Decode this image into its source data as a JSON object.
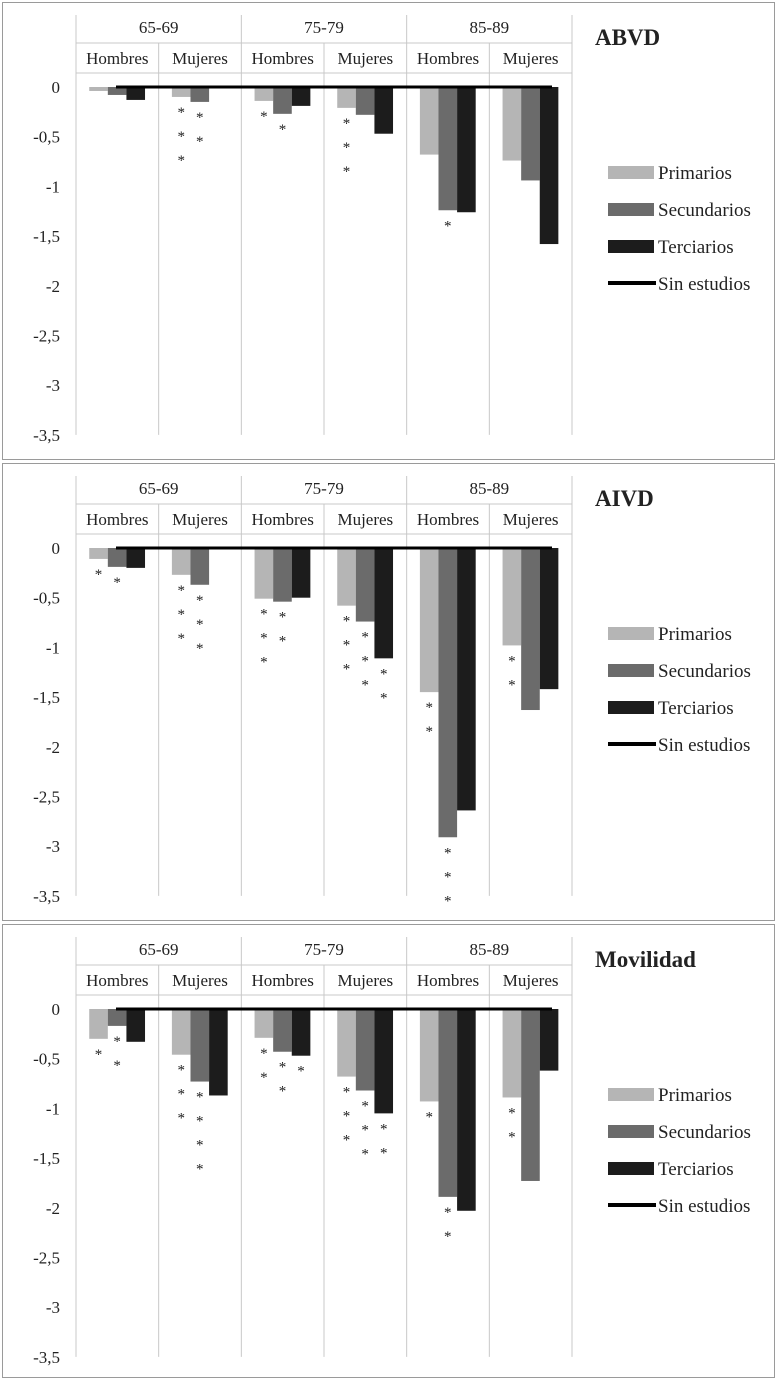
{
  "colors": {
    "primarios": "#b5b5b5",
    "secundarios": "#6b6b6b",
    "terciarios": "#1c1c1c",
    "sin_estudios": "#000000",
    "grid": "#c8c8c8"
  },
  "chart_data": [
    {
      "type": "bar",
      "title": "ABVD",
      "age_groups": [
        "65-69",
        "75-79",
        "85-89"
      ],
      "sexes": [
        "Hombres",
        "Mujeres"
      ],
      "categories": [
        "65-69 Hombres",
        "65-69 Mujeres",
        "75-79 Hombres",
        "75-79 Mujeres",
        "85-89 Hombres",
        "85-89 Mujeres"
      ],
      "ylim": [
        -3.5,
        0
      ],
      "yticks": [
        "0",
        "-0,5",
        "-1",
        "-1,5",
        "-2",
        "-2,5",
        "-3",
        "-3,5"
      ],
      "legend": [
        "Primarios",
        "Secundarios",
        "Terciarios",
        "Sin estudios"
      ],
      "legend_position": "right",
      "grid": true,
      "series": [
        {
          "name": "Primarios",
          "values": [
            -0.04,
            -0.1,
            -0.14,
            -0.21,
            -0.68,
            -0.74
          ],
          "markers": [
            "",
            "***",
            "*",
            "***",
            "",
            ""
          ]
        },
        {
          "name": "Secundarios",
          "values": [
            -0.08,
            -0.15,
            -0.27,
            -0.28,
            -1.24,
            -0.94
          ],
          "markers": [
            "",
            "**",
            "*",
            "",
            "*",
            ""
          ]
        },
        {
          "name": "Terciarios",
          "values": [
            -0.13,
            0,
            -0.19,
            -0.47,
            -1.26,
            -1.58
          ],
          "markers": [
            "",
            "",
            "",
            "",
            "",
            ""
          ]
        },
        {
          "name": "Sin estudios",
          "values": [
            0,
            0,
            0,
            0,
            0,
            0
          ]
        }
      ]
    },
    {
      "type": "bar",
      "title": "AIVD",
      "age_groups": [
        "65-69",
        "75-79",
        "85-89"
      ],
      "sexes": [
        "Hombres",
        "Mujeres"
      ],
      "categories": [
        "65-69 Hombres",
        "65-69 Mujeres",
        "75-79 Hombres",
        "75-79 Mujeres",
        "85-89 Hombres",
        "85-89 Mujeres"
      ],
      "ylim": [
        -3.5,
        0
      ],
      "yticks": [
        "0",
        "-0,5",
        "-1",
        "-1,5",
        "-2",
        "-2,5",
        "-3",
        "-3,5"
      ],
      "legend": [
        "Primarios",
        "Secundarios",
        "Terciarios",
        "Sin estudios"
      ],
      "legend_position": "right",
      "grid": true,
      "series": [
        {
          "name": "Primarios",
          "values": [
            -0.11,
            -0.27,
            -0.51,
            -0.58,
            -1.45,
            -0.98
          ],
          "markers": [
            "*",
            "***",
            "***",
            "***",
            "**",
            "**"
          ]
        },
        {
          "name": "Secundarios",
          "values": [
            -0.19,
            -0.37,
            -0.54,
            -0.74,
            -2.91,
            -1.63
          ],
          "markers": [
            "*",
            "***",
            "**",
            "***",
            "***",
            ""
          ]
        },
        {
          "name": "Terciarios",
          "values": [
            -0.2,
            0,
            -0.5,
            -1.11,
            -2.64,
            -1.42
          ],
          "markers": [
            "",
            "",
            "",
            "**",
            "",
            ""
          ]
        },
        {
          "name": "Sin estudios",
          "values": [
            0,
            0,
            0,
            0,
            0,
            0
          ]
        }
      ]
    },
    {
      "type": "bar",
      "title": "Movilidad",
      "age_groups": [
        "65-69",
        "75-79",
        "85-89"
      ],
      "sexes": [
        "Hombres",
        "Mujeres"
      ],
      "categories": [
        "65-69 Hombres",
        "65-69 Mujeres",
        "75-79 Hombres",
        "75-79 Mujeres",
        "85-89 Hombres",
        "85-89 Mujeres"
      ],
      "ylim": [
        -3.5,
        0
      ],
      "yticks": [
        "0",
        "-0,5",
        "-1",
        "-1,5",
        "-2",
        "-2,5",
        "-3",
        "-3,5"
      ],
      "legend": [
        "Primarios",
        "Secundarios",
        "Terciarios",
        "Sin estudios"
      ],
      "legend_position": "right",
      "grid": true,
      "series": [
        {
          "name": "Primarios",
          "values": [
            -0.3,
            -0.46,
            -0.29,
            -0.68,
            -0.93,
            -0.89
          ],
          "markers": [
            "*",
            "***",
            "**",
            "***",
            "*",
            "**"
          ]
        },
        {
          "name": "Secundarios",
          "values": [
            -0.17,
            -0.73,
            -0.43,
            -0.82,
            -1.89,
            -1.73
          ],
          "markers": [
            "**",
            "****",
            "**",
            "***",
            "**",
            ""
          ]
        },
        {
          "name": "Terciarios",
          "values": [
            -0.33,
            -0.87,
            -0.47,
            -1.05,
            -2.03,
            -0.62
          ],
          "markers": [
            "",
            "",
            "*",
            "**",
            "",
            ""
          ]
        },
        {
          "name": "Sin estudios",
          "values": [
            0,
            0,
            0,
            0,
            0,
            0
          ]
        }
      ]
    }
  ]
}
